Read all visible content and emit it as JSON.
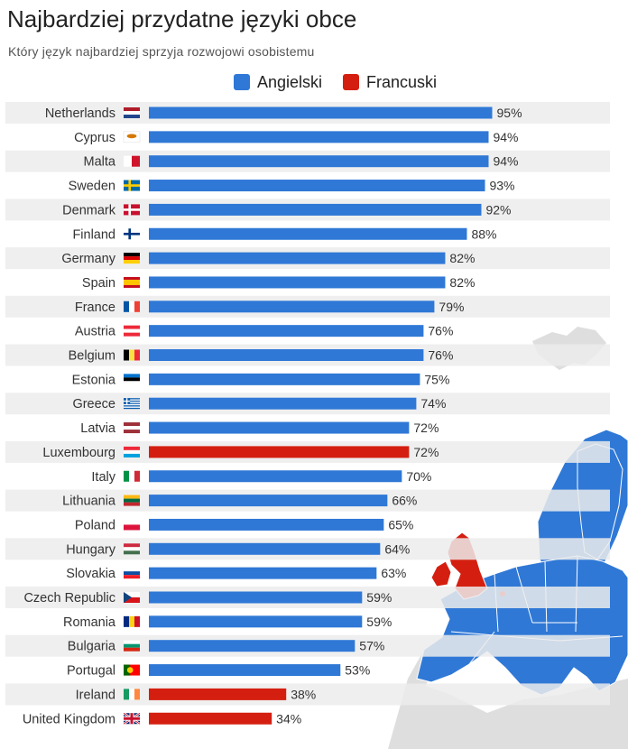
{
  "title": "Najbardziej przydatne języki obce",
  "subtitle": "Który język najbardziej sprzyja rozwojowi osobistemu",
  "legend": [
    {
      "label": "Angielski",
      "color": "#2f78d6"
    },
    {
      "label": "Francuski",
      "color": "#d41f10"
    }
  ],
  "chart_data": {
    "type": "bar",
    "orientation": "horizontal",
    "title": "Najbardziej przydatne języki obce",
    "subtitle": "Który język najbardziej sprzyja rozwojowi osobistemu",
    "value_suffix": "%",
    "xlim": [
      0,
      100
    ],
    "grid": false,
    "legend_position": "top-center",
    "rows": [
      {
        "country": "Netherlands",
        "flag": "netherlands-flag-icon",
        "value": 95,
        "language": "Angielski"
      },
      {
        "country": "Cyprus",
        "flag": "cyprus-flag-icon",
        "value": 94,
        "language": "Angielski"
      },
      {
        "country": "Malta",
        "flag": "malta-flag-icon",
        "value": 94,
        "language": "Angielski"
      },
      {
        "country": "Sweden",
        "flag": "sweden-flag-icon",
        "value": 93,
        "language": "Angielski"
      },
      {
        "country": "Denmark",
        "flag": "denmark-flag-icon",
        "value": 92,
        "language": "Angielski"
      },
      {
        "country": "Finland",
        "flag": "finland-flag-icon",
        "value": 88,
        "language": "Angielski"
      },
      {
        "country": "Germany",
        "flag": "germany-flag-icon",
        "value": 82,
        "language": "Angielski"
      },
      {
        "country": "Spain",
        "flag": "spain-flag-icon",
        "value": 82,
        "language": "Angielski"
      },
      {
        "country": "France",
        "flag": "france-flag-icon",
        "value": 79,
        "language": "Angielski"
      },
      {
        "country": "Austria",
        "flag": "austria-flag-icon",
        "value": 76,
        "language": "Angielski"
      },
      {
        "country": "Belgium",
        "flag": "belgium-flag-icon",
        "value": 76,
        "language": "Angielski"
      },
      {
        "country": "Estonia",
        "flag": "estonia-flag-icon",
        "value": 75,
        "language": "Angielski"
      },
      {
        "country": "Greece",
        "flag": "greece-flag-icon",
        "value": 74,
        "language": "Angielski"
      },
      {
        "country": "Latvia",
        "flag": "latvia-flag-icon",
        "value": 72,
        "language": "Angielski"
      },
      {
        "country": "Luxembourg",
        "flag": "luxembourg-flag-icon",
        "value": 72,
        "language": "Francuski"
      },
      {
        "country": "Italy",
        "flag": "italy-flag-icon",
        "value": 70,
        "language": "Angielski"
      },
      {
        "country": "Lithuania",
        "flag": "lithuania-flag-icon",
        "value": 66,
        "language": "Angielski"
      },
      {
        "country": "Poland",
        "flag": "poland-flag-icon",
        "value": 65,
        "language": "Angielski"
      },
      {
        "country": "Hungary",
        "flag": "hungary-flag-icon",
        "value": 64,
        "language": "Angielski"
      },
      {
        "country": "Slovakia",
        "flag": "slovakia-flag-icon",
        "value": 63,
        "language": "Angielski"
      },
      {
        "country": "Czech Republic",
        "flag": "czech-flag-icon",
        "value": 59,
        "language": "Angielski"
      },
      {
        "country": "Romania",
        "flag": "romania-flag-icon",
        "value": 59,
        "language": "Angielski"
      },
      {
        "country": "Bulgaria",
        "flag": "bulgaria-flag-icon",
        "value": 57,
        "language": "Angielski"
      },
      {
        "country": "Portugal",
        "flag": "portugal-flag-icon",
        "value": 53,
        "language": "Angielski"
      },
      {
        "country": "Ireland",
        "flag": "ireland-flag-icon",
        "value": 38,
        "language": "Francuski"
      },
      {
        "country": "United Kingdom",
        "flag": "uk-flag-icon",
        "value": 34,
        "language": "Francuski"
      }
    ]
  }
}
